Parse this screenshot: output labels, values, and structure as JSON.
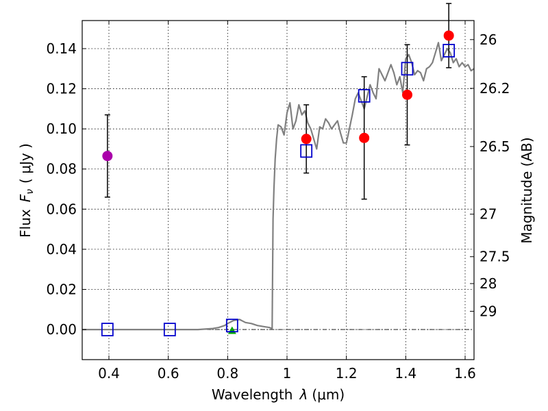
{
  "chart_data": {
    "type": "scatter",
    "title": "",
    "xlabel": "Wavelength",
    "xlabel_symbol": "λ",
    "xlabel_unit": "(μm)",
    "ylabel": "Flux",
    "ylabel_symbol": "F",
    "ylabel_subscript": "ν",
    "ylabel_unit": "( μJy )",
    "y2label": "Magnitude (AB)",
    "xlim": [
      0.31,
      1.63
    ],
    "ylim": [
      -0.015,
      0.154
    ],
    "grid": true,
    "x_ticks": [
      0.4,
      0.6,
      0.8,
      1.0,
      1.2,
      1.4,
      1.6
    ],
    "x_tick_labels": [
      "0.4",
      "0.6",
      "0.8",
      "1",
      "1.2",
      "1.4",
      "1.6"
    ],
    "y_ticks": [
      0.0,
      0.02,
      0.04,
      0.06,
      0.08,
      0.1,
      0.12,
      0.14
    ],
    "y_tick_labels": [
      "0.00",
      "0.02",
      "0.04",
      "0.06",
      "0.08",
      "0.10",
      "0.12",
      "0.14"
    ],
    "y2_ticks": [
      {
        "label": "26",
        "flux": 0.1445
      },
      {
        "label": "26.2",
        "flux": 0.1202
      },
      {
        "label": "26.5",
        "flux": 0.0912
      },
      {
        "label": "27",
        "flux": 0.0575
      },
      {
        "label": "27.5",
        "flux": 0.0363
      },
      {
        "label": "28",
        "flux": 0.0229
      },
      {
        "label": "29",
        "flux": 0.0091
      }
    ],
    "model_spectrum": {
      "name": "template",
      "color": "#808080",
      "x": [
        0.31,
        0.7,
        0.75,
        0.77,
        0.79,
        0.8,
        0.82,
        0.84,
        0.86,
        0.88,
        0.9,
        0.92,
        0.94,
        0.95,
        0.953,
        0.956,
        0.96,
        0.965,
        0.97,
        0.98,
        0.99,
        1.0,
        1.01,
        1.02,
        1.03,
        1.04,
        1.05,
        1.06,
        1.07,
        1.08,
        1.09,
        1.1,
        1.11,
        1.12,
        1.13,
        1.14,
        1.15,
        1.16,
        1.17,
        1.18,
        1.19,
        1.2,
        1.21,
        1.22,
        1.23,
        1.24,
        1.25,
        1.26,
        1.27,
        1.28,
        1.29,
        1.3,
        1.31,
        1.32,
        1.33,
        1.34,
        1.35,
        1.36,
        1.37,
        1.38,
        1.39,
        1.4,
        1.41,
        1.42,
        1.43,
        1.44,
        1.45,
        1.46,
        1.47,
        1.48,
        1.49,
        1.5,
        1.51,
        1.52,
        1.53,
        1.54,
        1.55,
        1.56,
        1.57,
        1.58,
        1.59,
        1.6,
        1.61,
        1.62,
        1.63
      ],
      "y": [
        0.0,
        0.0,
        0.0005,
        0.001,
        0.002,
        0.003,
        0.0045,
        0.005,
        0.0035,
        0.003,
        0.002,
        0.0015,
        0.001,
        0.0005,
        0.055,
        0.07,
        0.085,
        0.095,
        0.102,
        0.101,
        0.097,
        0.108,
        0.113,
        0.1,
        0.104,
        0.112,
        0.107,
        0.109,
        0.103,
        0.1,
        0.095,
        0.09,
        0.101,
        0.1,
        0.105,
        0.103,
        0.1,
        0.102,
        0.104,
        0.098,
        0.093,
        0.093,
        0.1,
        0.107,
        0.115,
        0.118,
        0.114,
        0.11,
        0.116,
        0.122,
        0.118,
        0.115,
        0.13,
        0.127,
        0.124,
        0.128,
        0.132,
        0.128,
        0.122,
        0.126,
        0.118,
        0.135,
        0.137,
        0.133,
        0.127,
        0.129,
        0.128,
        0.124,
        0.13,
        0.131,
        0.133,
        0.138,
        0.143,
        0.134,
        0.137,
        0.14,
        0.138,
        0.133,
        0.135,
        0.131,
        0.133,
        0.131,
        0.132,
        0.129,
        0.13
      ]
    },
    "observed_points": [
      {
        "x": 0.395,
        "y": 0.0865,
        "err": 0.0205,
        "color": "#aa00aa"
      },
      {
        "x": 0.815,
        "y": -0.0005,
        "err": 0.0,
        "color": "#00aa00",
        "marker": "triangle"
      },
      {
        "x": 1.065,
        "y": 0.095,
        "err": 0.017,
        "color": "#ff0000"
      },
      {
        "x": 1.26,
        "y": 0.0955,
        "err": 0.0305,
        "color": "#ff0000"
      },
      {
        "x": 1.405,
        "y": 0.117,
        "err": 0.025,
        "color": "#ff0000"
      },
      {
        "x": 1.545,
        "y": 0.1465,
        "err": 0.016,
        "color": "#ff0000"
      }
    ],
    "model_points": [
      {
        "x": 0.395,
        "y": 0.0
      },
      {
        "x": 0.605,
        "y": 0.0
      },
      {
        "x": 0.815,
        "y": 0.002
      },
      {
        "x": 1.065,
        "y": 0.089
      },
      {
        "x": 1.26,
        "y": 0.1165
      },
      {
        "x": 1.405,
        "y": 0.13
      },
      {
        "x": 1.545,
        "y": 0.139
      }
    ],
    "model_point_color": "#0000cc",
    "zero_line": true
  }
}
